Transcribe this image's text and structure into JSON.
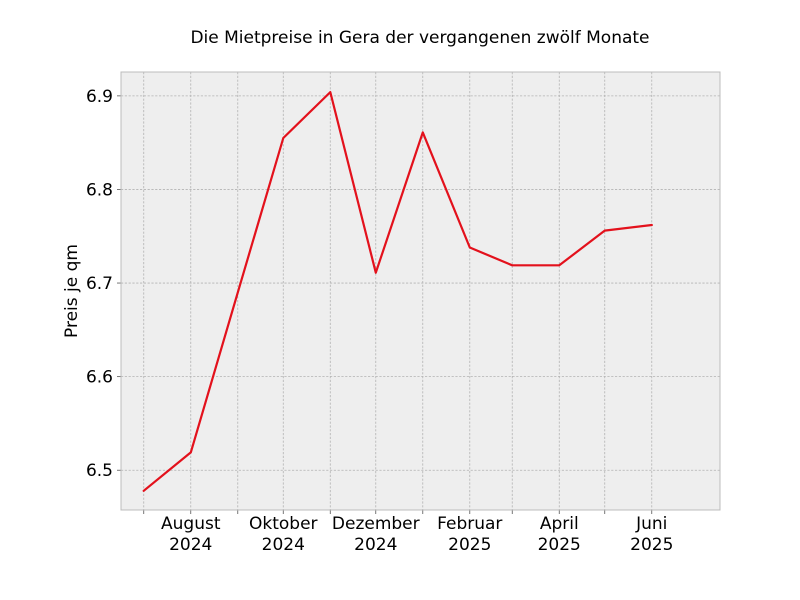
{
  "chart_data": {
    "type": "line",
    "title": "Die Mietpreise in Gera der vergangenen zwölf Monate",
    "ylabel": "Preis je qm",
    "xlabel": "",
    "x": [
      "2024-07",
      "2024-08",
      "2024-09",
      "2024-10",
      "2024-11",
      "2024-12",
      "2025-01",
      "2025-02",
      "2025-03",
      "2025-04",
      "2025-05",
      "2025-06"
    ],
    "series": [
      {
        "values": [
          6.478,
          6.519,
          6.69,
          6.855,
          6.904,
          6.711,
          6.861,
          6.738,
          6.719,
          6.719,
          6.756,
          6.762
        ]
      }
    ],
    "x_ticks": [
      {
        "x": "2024-08",
        "line1": "August",
        "line2": "2024"
      },
      {
        "x": "2024-10",
        "line1": "Oktober",
        "line2": "2024"
      },
      {
        "x": "2024-12",
        "line1": "Dezember",
        "line2": "2024"
      },
      {
        "x": "2025-02",
        "line1": "Februar",
        "line2": "2025"
      },
      {
        "x": "2025-04",
        "line1": "April",
        "line2": "2025"
      },
      {
        "x": "2025-06",
        "line1": "Juni",
        "line2": "2025"
      }
    ],
    "y_ticks": [
      "6.5",
      "6.6",
      "6.7",
      "6.8",
      "6.9"
    ],
    "ylim": [
      6.4575,
      6.9255
    ],
    "xlim": [
      "2024-06-16",
      "2025-07-16"
    ],
    "grid": true,
    "colors": {
      "line": "#e3111c",
      "plot_background": "#eeeeee",
      "grid": "#b2b2b2",
      "frame": "#bcbcbc"
    }
  }
}
